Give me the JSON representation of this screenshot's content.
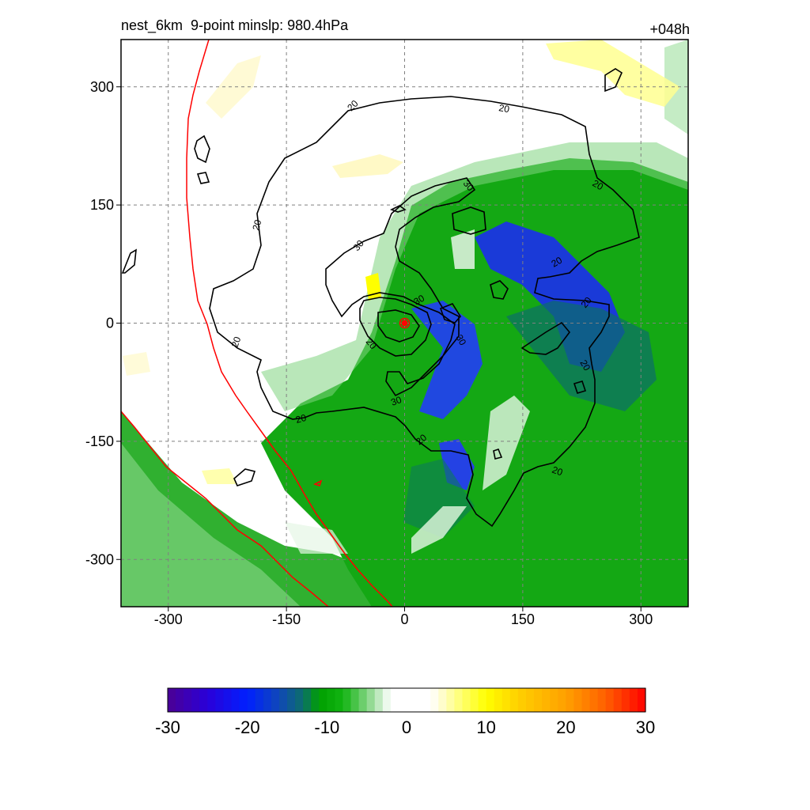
{
  "header": {
    "title_left": "nest_6km  9-point minslp: 980.4hPa",
    "title_right": "+048h"
  },
  "colors": {
    "background": "#ffffff",
    "coast": "#ff0000",
    "contour": "#000000",
    "grid": "#808080",
    "center_marker": "#ff0000"
  },
  "chart_data": {
    "type": "heatmap",
    "title": "nest_6km  9-point minslp: 980.4hPa",
    "forecast_hour": "+048h",
    "xlim": [
      -360,
      360
    ],
    "ylim": [
      -360,
      360
    ],
    "x_ticks": [
      -300,
      -150,
      0,
      150,
      300
    ],
    "y_ticks": [
      300,
      150,
      0,
      -150,
      -300
    ],
    "grid": true,
    "colorbar": {
      "orientation": "horizontal",
      "range": [
        -30,
        30
      ],
      "tick_values": [
        -30,
        -20,
        -10,
        0,
        10,
        20,
        30
      ],
      "tick_labels": [
        "-30",
        "-20",
        "-10",
        "0",
        "10",
        "20",
        "30"
      ],
      "stops": [
        {
          "v": -30,
          "c": "#4b0094"
        },
        {
          "v": -25,
          "c": "#2a00d9"
        },
        {
          "v": -20,
          "c": "#0020ff"
        },
        {
          "v": -16,
          "c": "#1048b8"
        },
        {
          "v": -13,
          "c": "#0c6e6a"
        },
        {
          "v": -11,
          "c": "#00a000"
        },
        {
          "v": -8,
          "c": "#12b412"
        },
        {
          "v": -6,
          "c": "#58c858"
        },
        {
          "v": -4,
          "c": "#a8e0a8"
        },
        {
          "v": -3,
          "c": "#d8f2d8"
        },
        {
          "v": -2,
          "c": "#ffffff"
        },
        {
          "v": 3,
          "c": "#ffffff"
        },
        {
          "v": 4,
          "c": "#fffce0"
        },
        {
          "v": 6,
          "c": "#ffff90"
        },
        {
          "v": 10,
          "c": "#ffff00"
        },
        {
          "v": 14,
          "c": "#ffd000"
        },
        {
          "v": 20,
          "c": "#ffa000"
        },
        {
          "v": 25,
          "c": "#ff6000"
        },
        {
          "v": 30,
          "c": "#ff0000"
        }
      ]
    },
    "contour_label": "20",
    "contour_label_2": "30",
    "storm_center": {
      "x": 0,
      "y": 0
    }
  }
}
